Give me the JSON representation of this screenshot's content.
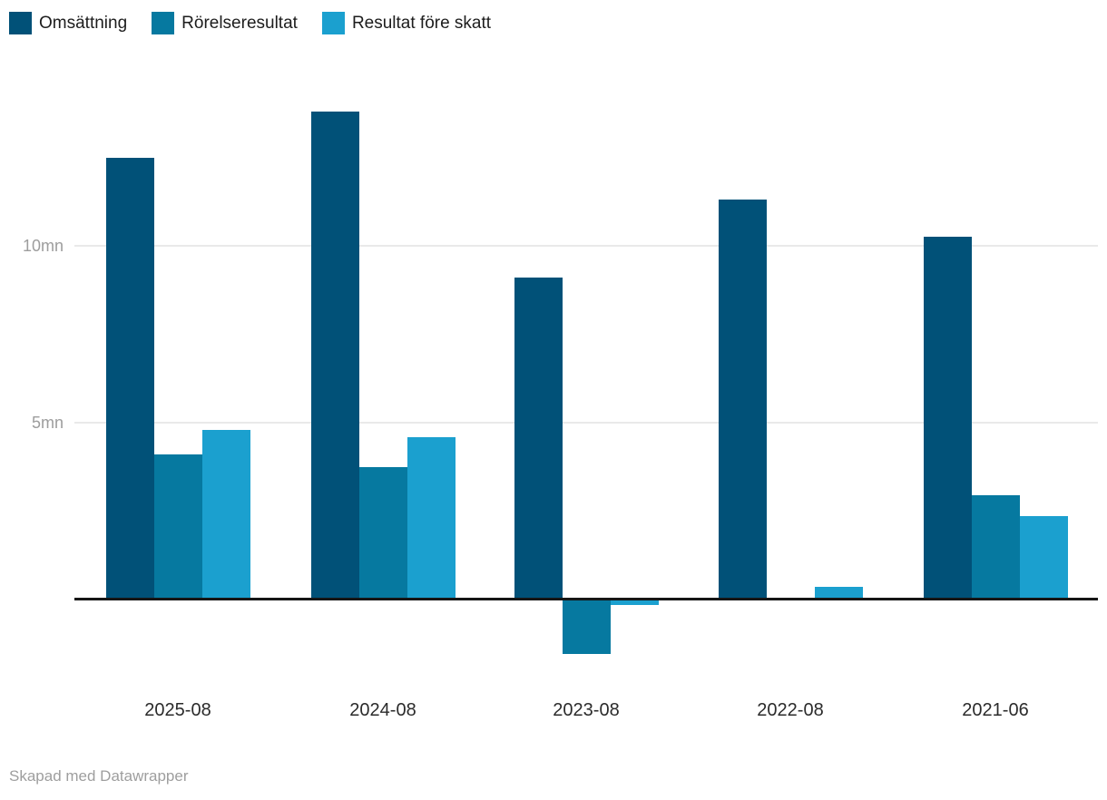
{
  "footer": {
    "attribution": "Skapad med Datawrapper"
  },
  "colors": {
    "series_dark": "#015178",
    "series_medium": "#0679a0",
    "series_light": "#1ba0cf",
    "gridline": "#e9e9e9",
    "axis": "#161616",
    "tick_text": "#9d9d9d",
    "label_text": "#2b2b2b"
  },
  "chart_data": {
    "type": "bar",
    "title": "",
    "categories": [
      "2025-08",
      "2024-08",
      "2023-08",
      "2022-08",
      "2021-06"
    ],
    "series": [
      {
        "name": "Omsättning",
        "color": "#015178",
        "values": [
          12.5,
          13.8,
          9.1,
          11.3,
          10.25
        ]
      },
      {
        "name": "Rörelseresultat",
        "color": "#0679a0",
        "values": [
          4.1,
          3.75,
          -1.55,
          0,
          2.95
        ]
      },
      {
        "name": "Resultat före skatt",
        "color": "#1ba0cf",
        "values": [
          4.8,
          4.6,
          -0.15,
          0.35,
          2.35
        ]
      }
    ],
    "xlabel": "",
    "ylabel": "",
    "unit": "mn",
    "y_ticks": [
      {
        "value": 10,
        "label": "10mn"
      },
      {
        "value": 5,
        "label": "5mn"
      }
    ],
    "ylim": [
      -2.2,
      14.8
    ],
    "grid": true,
    "legend_position": "top-left"
  }
}
